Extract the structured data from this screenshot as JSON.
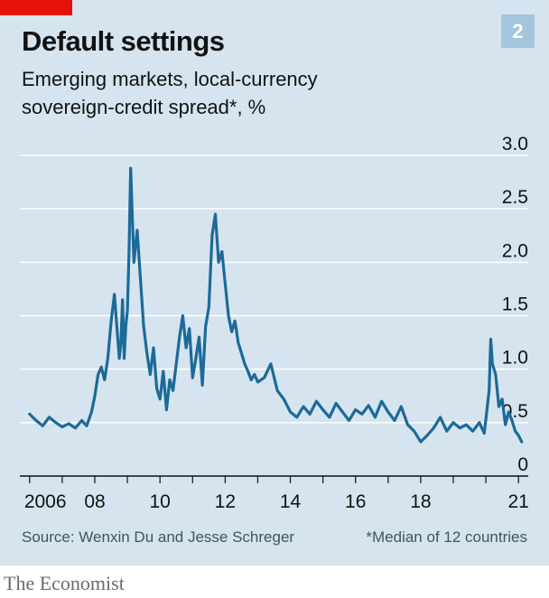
{
  "header": {
    "title": "Default settings",
    "subtitle": "Emerging markets, local-currency sovereign-credit spread*, %",
    "chart_number": "2"
  },
  "footer": {
    "source": "Source: Wenxin Du and Jesse Schreger",
    "footnote": "*Median of 12 countries",
    "brand": "The Economist"
  },
  "colors": {
    "panel_bg": "#d5e4ee",
    "line": "#1c6a98",
    "accent_red": "#e3120b",
    "chart_number_bg": "#a4c6dc",
    "gridline": "#ffffff",
    "axis": "#121212"
  },
  "chart_data": {
    "type": "line",
    "title": "Default settings",
    "subtitle": "Emerging markets, local-currency sovereign-credit spread*, %",
    "xlabel": "",
    "ylabel": "",
    "xlim": [
      2005.7,
      2021.3
    ],
    "ylim": [
      0,
      3.0
    ],
    "y_ticks": [
      0,
      0.5,
      1.0,
      1.5,
      2.0,
      2.5,
      3.0
    ],
    "y_tick_labels": [
      "0",
      "0.5",
      "1.0",
      "1.5",
      "2.0",
      "2.5",
      "3.0"
    ],
    "x_ticks": [
      2006,
      2008,
      2010,
      2012,
      2014,
      2016,
      2018,
      2021
    ],
    "x_tick_labels": [
      "2006",
      "08",
      "10",
      "12",
      "14",
      "16",
      "18",
      "21"
    ],
    "x_minor_ticks": [
      2006,
      2007,
      2008,
      2009,
      2010,
      2011,
      2012,
      2013,
      2014,
      2015,
      2016,
      2017,
      2018,
      2019,
      2020,
      2021
    ],
    "grid": true,
    "legend": "none",
    "y_axis_side": "right",
    "series": [
      {
        "name": "",
        "x": [
          2006.0,
          2006.2,
          2006.4,
          2006.6,
          2006.8,
          2007.0,
          2007.2,
          2007.4,
          2007.6,
          2007.75,
          2007.9,
          2008.0,
          2008.1,
          2008.2,
          2008.3,
          2008.4,
          2008.5,
          2008.6,
          2008.7,
          2008.75,
          2008.8,
          2008.85,
          2008.9,
          2008.95,
          2009.0,
          2009.05,
          2009.1,
          2009.2,
          2009.3,
          2009.4,
          2009.5,
          2009.6,
          2009.7,
          2009.8,
          2009.9,
          2010.0,
          2010.1,
          2010.2,
          2010.3,
          2010.4,
          2010.5,
          2010.6,
          2010.7,
          2010.8,
          2010.9,
          2011.0,
          2011.1,
          2011.2,
          2011.3,
          2011.4,
          2011.5,
          2011.6,
          2011.7,
          2011.8,
          2011.9,
          2012.0,
          2012.1,
          2012.2,
          2012.3,
          2012.4,
          2012.5,
          2012.6,
          2012.7,
          2012.8,
          2012.9,
          2013.0,
          2013.2,
          2013.4,
          2013.6,
          2013.8,
          2014.0,
          2014.2,
          2014.4,
          2014.6,
          2014.8,
          2015.0,
          2015.2,
          2015.4,
          2015.6,
          2015.8,
          2016.0,
          2016.2,
          2016.4,
          2016.6,
          2016.8,
          2017.0,
          2017.2,
          2017.4,
          2017.6,
          2017.8,
          2018.0,
          2018.2,
          2018.4,
          2018.6,
          2018.8,
          2019.0,
          2019.2,
          2019.4,
          2019.6,
          2019.8,
          2019.95,
          2020.1,
          2020.15,
          2020.2,
          2020.3,
          2020.4,
          2020.5,
          2020.6,
          2020.7,
          2020.8,
          2020.9,
          2021.0,
          2021.1
        ],
        "values": [
          0.58,
          0.52,
          0.47,
          0.55,
          0.5,
          0.46,
          0.49,
          0.45,
          0.52,
          0.47,
          0.6,
          0.75,
          0.95,
          1.02,
          0.9,
          1.1,
          1.45,
          1.7,
          1.3,
          1.1,
          1.25,
          1.65,
          1.1,
          1.4,
          1.55,
          2.1,
          2.88,
          2.0,
          2.3,
          1.85,
          1.4,
          1.15,
          0.95,
          1.2,
          0.82,
          0.72,
          0.98,
          0.62,
          0.9,
          0.8,
          1.05,
          1.3,
          1.5,
          1.2,
          1.38,
          0.92,
          1.1,
          1.3,
          0.85,
          1.4,
          1.58,
          2.25,
          2.45,
          2.0,
          2.1,
          1.8,
          1.5,
          1.35,
          1.45,
          1.25,
          1.15,
          1.05,
          0.98,
          0.9,
          0.95,
          0.88,
          0.92,
          1.05,
          0.8,
          0.72,
          0.6,
          0.55,
          0.65,
          0.58,
          0.7,
          0.62,
          0.55,
          0.68,
          0.6,
          0.52,
          0.62,
          0.58,
          0.66,
          0.55,
          0.7,
          0.6,
          0.52,
          0.65,
          0.48,
          0.42,
          0.32,
          0.38,
          0.45,
          0.55,
          0.42,
          0.5,
          0.45,
          0.48,
          0.42,
          0.5,
          0.4,
          0.8,
          1.28,
          1.05,
          0.95,
          0.65,
          0.72,
          0.48,
          0.6,
          0.52,
          0.42,
          0.38,
          0.32
        ]
      }
    ]
  }
}
